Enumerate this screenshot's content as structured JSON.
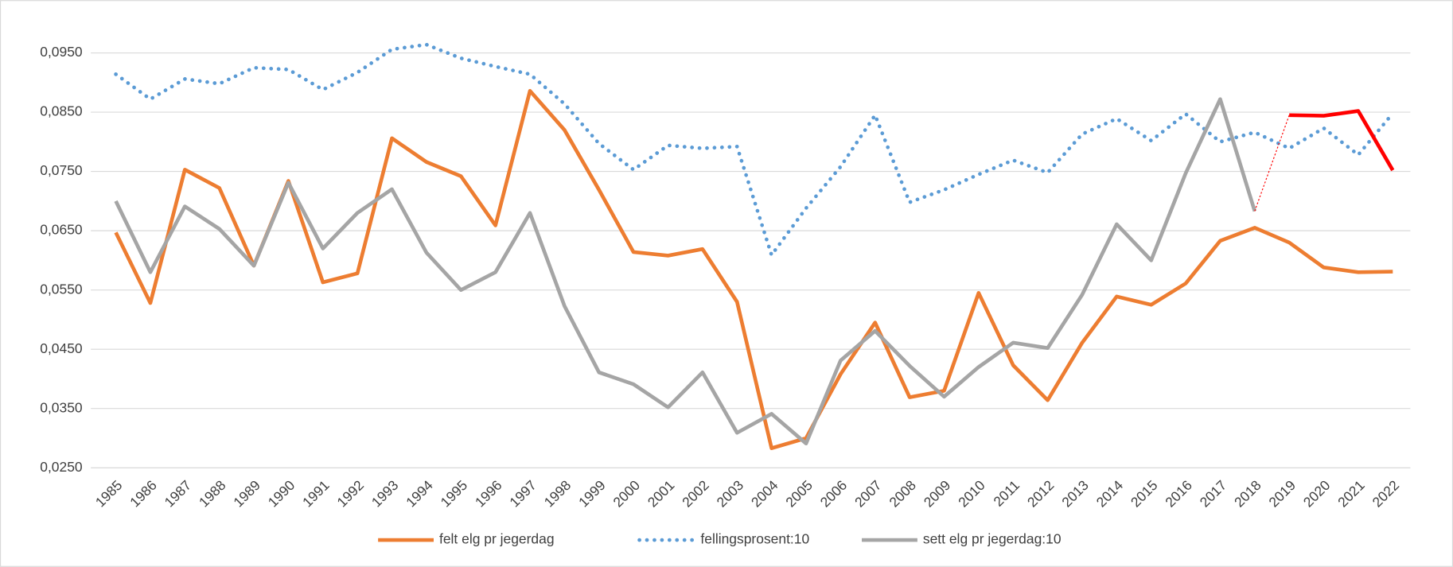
{
  "chart_data": {
    "type": "line",
    "categories": [
      "1985",
      "1986",
      "1987",
      "1988",
      "1989",
      "1990",
      "1991",
      "1992",
      "1993",
      "1994",
      "1995",
      "1996",
      "1997",
      "1998",
      "1999",
      "2000",
      "2001",
      "2002",
      "2003",
      "2004",
      "2005",
      "2006",
      "2007",
      "2008",
      "2009",
      "2010",
      "2011",
      "2012",
      "2013",
      "2014",
      "2015",
      "2016",
      "2017",
      "2018",
      "2019",
      "2020",
      "2021",
      "2022"
    ],
    "series": [
      {
        "name": "felt elg pr jegerdag",
        "color": "#ed7d31",
        "style": "solid",
        "values": [
          0.0647,
          0.0528,
          0.0753,
          0.0722,
          0.0591,
          0.0734,
          0.0563,
          0.0578,
          0.0806,
          0.0766,
          0.0742,
          0.0659,
          0.0886,
          0.082,
          0.0719,
          0.0614,
          0.0608,
          0.0619,
          0.053,
          0.0283,
          0.03,
          0.0408,
          0.0495,
          0.0369,
          0.038,
          0.0545,
          0.0423,
          0.0364,
          0.0461,
          0.0539,
          0.0525,
          0.0561,
          0.0633,
          0.0655,
          0.063,
          0.0588,
          0.058,
          0.0581
        ]
      },
      {
        "name": "fellingsprosent:10",
        "color": "#5b9bd5",
        "style": "dotted",
        "values": [
          0.0914,
          0.0872,
          0.0906,
          0.0898,
          0.0925,
          0.0922,
          0.0888,
          0.0917,
          0.0956,
          0.0964,
          0.0941,
          0.0927,
          0.0914,
          0.0864,
          0.0797,
          0.0753,
          0.0794,
          0.0789,
          0.0792,
          0.0609,
          0.0688,
          0.0758,
          0.0845,
          0.0698,
          0.0719,
          0.0745,
          0.0769,
          0.0748,
          0.0813,
          0.0839,
          0.0802,
          0.0847,
          0.08,
          0.0816,
          0.0789,
          0.0823,
          0.0778,
          0.0848
        ]
      },
      {
        "name": "sett elg pr jegerdag:10",
        "color": "#a5a5a5",
        "style": "solid",
        "highlight_color": "#ff0000",
        "highlight_from": "2019",
        "values": [
          0.07,
          0.058,
          0.0691,
          0.0653,
          0.0591,
          0.0731,
          0.062,
          0.068,
          0.072,
          0.0613,
          0.055,
          0.058,
          0.068,
          0.0523,
          0.0411,
          0.0391,
          0.0352,
          0.0411,
          0.0309,
          0.0341,
          0.0291,
          0.0431,
          0.0481,
          0.0422,
          0.037,
          0.042,
          0.0461,
          0.0452,
          0.0542,
          0.0661,
          0.06,
          0.0747,
          0.0872,
          0.0683,
          0.0845,
          0.0844,
          0.0852,
          0.0752
        ]
      }
    ],
    "ylim": [
      0.025,
      0.095
    ],
    "yticks": [
      {
        "value": 0.025,
        "label": "0,0250"
      },
      {
        "value": 0.035,
        "label": "0,0350"
      },
      {
        "value": 0.045,
        "label": "0,0450"
      },
      {
        "value": 0.055,
        "label": "0,0550"
      },
      {
        "value": 0.065,
        "label": "0,0650"
      },
      {
        "value": 0.075,
        "label": "0,0750"
      },
      {
        "value": 0.085,
        "label": "0,0850"
      },
      {
        "value": 0.095,
        "label": "0,0950"
      }
    ],
    "grid": true,
    "legend": "bottom"
  }
}
